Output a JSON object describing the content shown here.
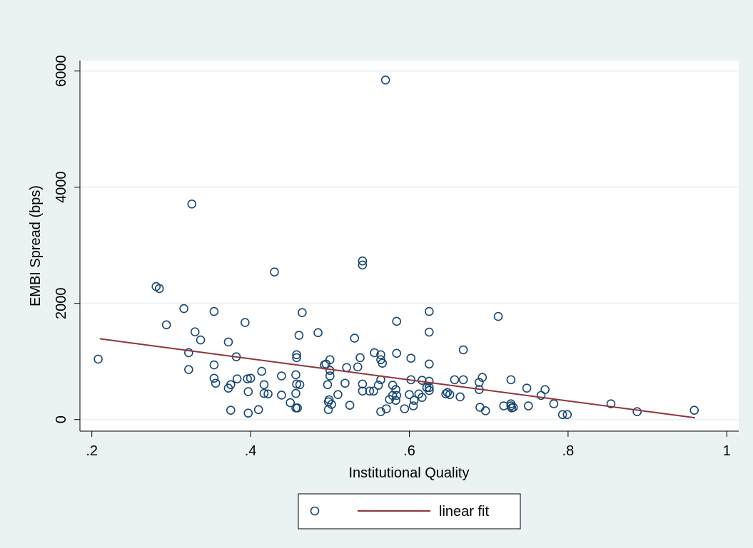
{
  "chart_data": {
    "type": "scatter",
    "x_label": "Institutional Quality",
    "y_label": "EMBI Spread (bps)",
    "xlim": [
      0.185,
      1.015
    ],
    "ylim": [
      -200,
      6180
    ],
    "xticks": [
      {
        "value": 0.2,
        "label": ".2"
      },
      {
        "value": 0.4,
        "label": ".4"
      },
      {
        "value": 0.6,
        "label": ".6"
      },
      {
        "value": 0.8,
        "label": ".8"
      },
      1
    ],
    "yticks": [
      0,
      2000,
      4000,
      6000
    ],
    "grid": true,
    "legend": "bottom",
    "series": [
      {
        "type": "scatter",
        "color": "#1a476f",
        "x": [
          0.208,
          0.281,
          0.285,
          0.294,
          0.316,
          0.322,
          0.322,
          0.326,
          0.33,
          0.337,
          0.354,
          0.354,
          0.354,
          0.356,
          0.372,
          0.372,
          0.375,
          0.375,
          0.382,
          0.383,
          0.393,
          0.396,
          0.4,
          0.397,
          0.397,
          0.41,
          0.414,
          0.417,
          0.417,
          0.422,
          0.43,
          0.439,
          0.439,
          0.45,
          0.457,
          0.459,
          0.457,
          0.457,
          0.458,
          0.458,
          0.458,
          0.462,
          0.461,
          0.465,
          0.485,
          0.493,
          0.495,
          0.497,
          0.498,
          0.499,
          0.498,
          0.5,
          0.5,
          0.5,
          0.502,
          0.51,
          0.519,
          0.521,
          0.525,
          0.531,
          0.535,
          0.538,
          0.541,
          0.541,
          0.541,
          0.541,
          0.55,
          0.555,
          0.556,
          0.561,
          0.564,
          0.564,
          0.564,
          0.566,
          0.564,
          0.57,
          0.571,
          0.575,
          0.579,
          0.579,
          0.583,
          0.583,
          0.584,
          0.584,
          0.584,
          0.594,
          0.6,
          0.602,
          0.602,
          0.605,
          0.606,
          0.612,
          0.616,
          0.616,
          0.622,
          0.625,
          0.625,
          0.625,
          0.625,
          0.625,
          0.625,
          0.646,
          0.648,
          0.651,
          0.657,
          0.664,
          0.668,
          0.668,
          0.688,
          0.688,
          0.689,
          0.692,
          0.696,
          0.712,
          0.719,
          0.728,
          0.728,
          0.728,
          0.729,
          0.731,
          0.748,
          0.75,
          0.766,
          0.771,
          0.782,
          0.793,
          0.799,
          0.854,
          0.887,
          0.959
        ],
        "values": [
          1040,
          2290,
          2255,
          1630,
          1910,
          1150,
          860,
          3710,
          1510,
          1370,
          1860,
          940,
          710,
          625,
          1335,
          540,
          600,
          160,
          1080,
          700,
          1670,
          700,
          710,
          480,
          110,
          170,
          830,
          600,
          450,
          440,
          2540,
          750,
          420,
          290,
          200,
          200,
          450,
          770,
          1115,
          1065,
          610,
          600,
          1450,
          1840,
          1495,
          940,
          955,
          600,
          170,
          340,
          305,
          1030,
          750,
          845,
          260,
          430,
          625,
          895,
          245,
          1400,
          905,
          1065,
          610,
          2730,
          2660,
          490,
          490,
          490,
          1150,
          590,
          685,
          1115,
          1030,
          970,
          135,
          5845,
          185,
          345,
          415,
          590,
          330,
          515,
          1690,
          1140,
          415,
          185,
          430,
          1055,
          685,
          235,
          330,
          440,
          380,
          675,
          550,
          1860,
          1505,
          955,
          660,
          500,
          550,
          440,
          465,
          430,
          685,
          390,
          685,
          1200,
          640,
          515,
          210,
          725,
          150,
          1775,
          235,
          685,
          235,
          270,
          200,
          210,
          540,
          235,
          415,
          515,
          270,
          85,
          85,
          270,
          135,
          160
        ]
      },
      {
        "type": "line",
        "name": "linear fit",
        "color": "#90353b",
        "x": [
          0.21,
          0.96
        ],
        "values": [
          1390,
          30
        ]
      }
    ]
  }
}
